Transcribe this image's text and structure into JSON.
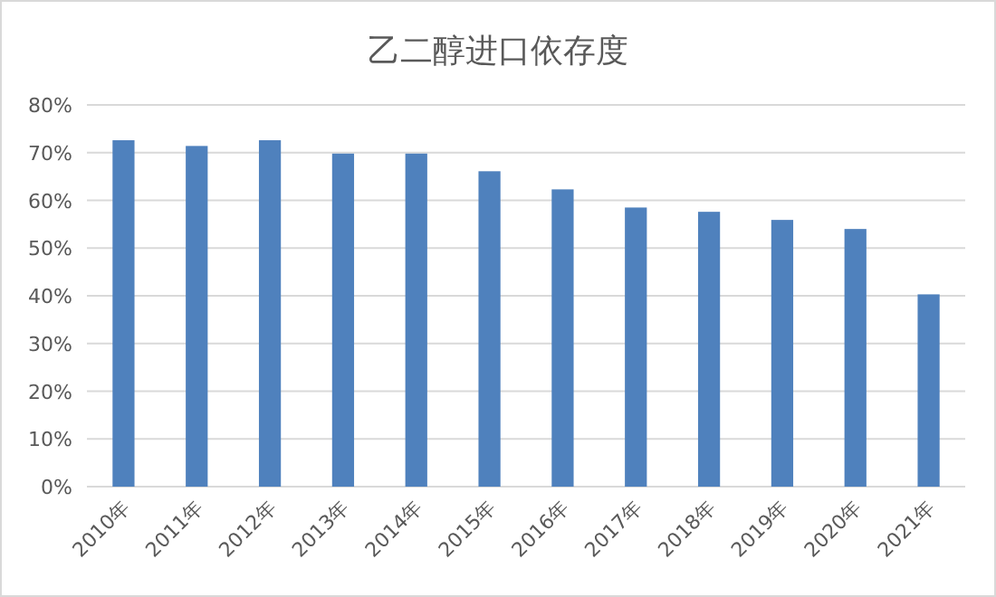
{
  "chart_data": {
    "type": "bar",
    "title": "乙二醇进口依存度",
    "categories": [
      "2010年",
      "2011年",
      "2012年",
      "2013年",
      "2014年",
      "2015年",
      "2016年",
      "2017年",
      "2018年",
      "2019年",
      "2020年",
      "2021年"
    ],
    "values": [
      72.6,
      71.4,
      72.6,
      69.8,
      69.8,
      66.1,
      62.3,
      58.5,
      57.6,
      55.9,
      54.0,
      40.3
    ],
    "color": "#4f81bd",
    "ylim": [
      0,
      80
    ],
    "yticks": [
      {
        "value": 0,
        "label": "0%"
      },
      {
        "value": 10,
        "label": "10%"
      },
      {
        "value": 20,
        "label": "20%"
      },
      {
        "value": 30,
        "label": "30%"
      },
      {
        "value": 40,
        "label": "40%"
      },
      {
        "value": 50,
        "label": "50%"
      },
      {
        "value": 60,
        "label": "60%"
      },
      {
        "value": 70,
        "label": "70%"
      },
      {
        "value": 80,
        "label": "80%"
      }
    ],
    "grid": "y"
  }
}
